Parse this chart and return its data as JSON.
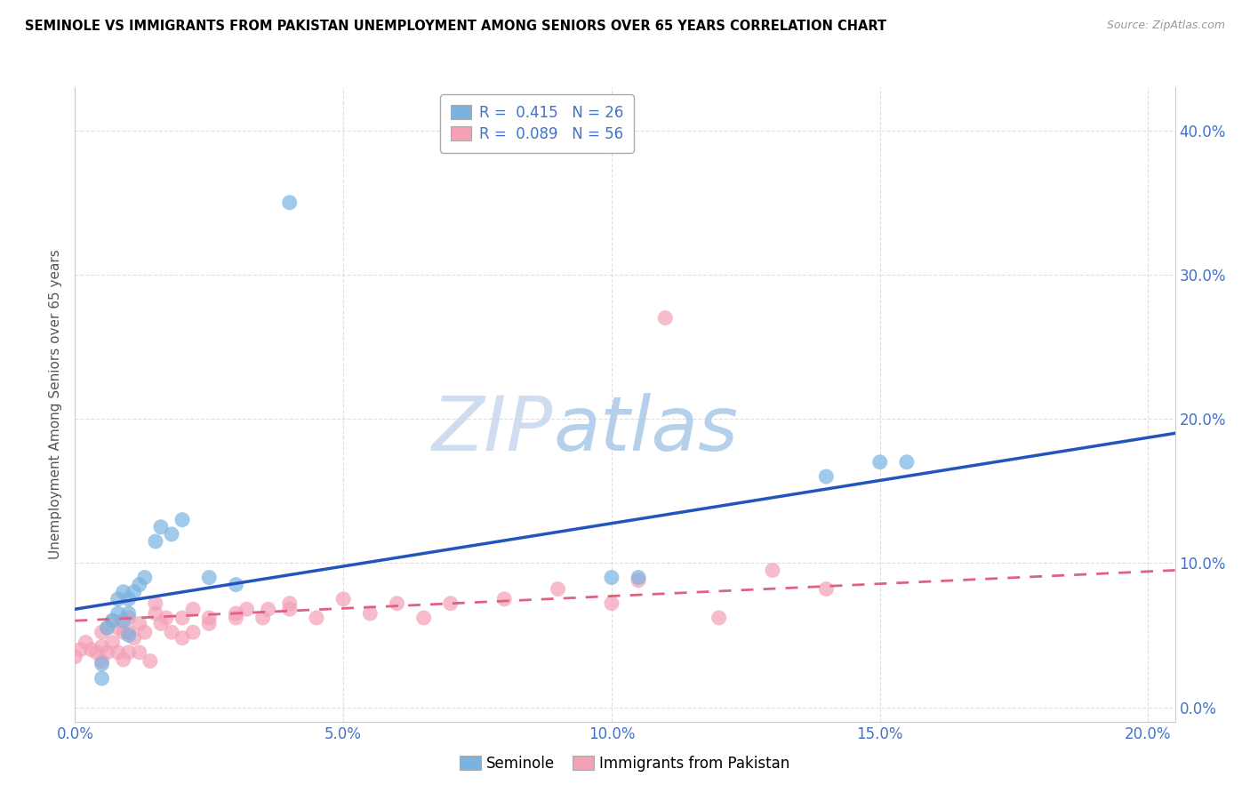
{
  "title": "SEMINOLE VS IMMIGRANTS FROM PAKISTAN UNEMPLOYMENT AMONG SENIORS OVER 65 YEARS CORRELATION CHART",
  "source": "Source: ZipAtlas.com",
  "xlabel_tick_vals": [
    0.0,
    0.05,
    0.1,
    0.15,
    0.2
  ],
  "ylabel_tick_vals": [
    0.0,
    0.1,
    0.2,
    0.3,
    0.4
  ],
  "ylabel_label": "Unemployment Among Seniors over 65 years",
  "xmin": 0.0,
  "xmax": 0.205,
  "ymin": -0.01,
  "ymax": 0.43,
  "legend_seminole": "Seminole",
  "legend_pakistan": "Immigrants from Pakistan",
  "R_seminole": "0.415",
  "N_seminole": "26",
  "R_pakistan": "0.089",
  "N_pakistan": "56",
  "color_seminole": "#7ab3e0",
  "color_pakistan": "#f4a0b5",
  "trendline_seminole": "#2255bb",
  "trendline_pakistan": "#e06080",
  "seminole_x": [
    0.005,
    0.005,
    0.006,
    0.007,
    0.008,
    0.008,
    0.009,
    0.009,
    0.01,
    0.01,
    0.01,
    0.011,
    0.012,
    0.013,
    0.015,
    0.016,
    0.018,
    0.02,
    0.025,
    0.03,
    0.04,
    0.1,
    0.105,
    0.14,
    0.15,
    0.155
  ],
  "seminole_y": [
    0.02,
    0.03,
    0.055,
    0.06,
    0.065,
    0.075,
    0.06,
    0.08,
    0.05,
    0.065,
    0.075,
    0.08,
    0.085,
    0.09,
    0.115,
    0.125,
    0.12,
    0.13,
    0.09,
    0.085,
    0.35,
    0.09,
    0.09,
    0.16,
    0.17,
    0.17
  ],
  "pakistan_x": [
    0.0,
    0.001,
    0.002,
    0.003,
    0.004,
    0.005,
    0.005,
    0.005,
    0.006,
    0.006,
    0.007,
    0.007,
    0.008,
    0.008,
    0.009,
    0.009,
    0.01,
    0.01,
    0.01,
    0.011,
    0.012,
    0.012,
    0.013,
    0.014,
    0.015,
    0.015,
    0.016,
    0.017,
    0.018,
    0.02,
    0.02,
    0.022,
    0.022,
    0.025,
    0.025,
    0.03,
    0.03,
    0.032,
    0.035,
    0.036,
    0.04,
    0.04,
    0.045,
    0.05,
    0.055,
    0.06,
    0.065,
    0.07,
    0.08,
    0.09,
    0.1,
    0.105,
    0.11,
    0.12,
    0.13,
    0.14
  ],
  "pakistan_y": [
    0.035,
    0.04,
    0.045,
    0.04,
    0.038,
    0.032,
    0.042,
    0.052,
    0.038,
    0.055,
    0.045,
    0.06,
    0.038,
    0.055,
    0.033,
    0.052,
    0.038,
    0.052,
    0.062,
    0.048,
    0.038,
    0.058,
    0.052,
    0.032,
    0.065,
    0.072,
    0.058,
    0.062,
    0.052,
    0.048,
    0.062,
    0.052,
    0.068,
    0.058,
    0.062,
    0.065,
    0.062,
    0.068,
    0.062,
    0.068,
    0.072,
    0.068,
    0.062,
    0.075,
    0.065,
    0.072,
    0.062,
    0.072,
    0.075,
    0.082,
    0.072,
    0.088,
    0.27,
    0.062,
    0.095,
    0.082
  ],
  "trendline_sem_y0": 0.068,
  "trendline_sem_y1": 0.19,
  "trendline_pak_y0": 0.06,
  "trendline_pak_y1": 0.095,
  "watermark_zip_color": "#c8d8ee",
  "watermark_atlas_color": "#a8c8e8",
  "tick_color": "#4472c4",
  "grid_color": "#d8d8d8",
  "spine_color": "#cccccc"
}
